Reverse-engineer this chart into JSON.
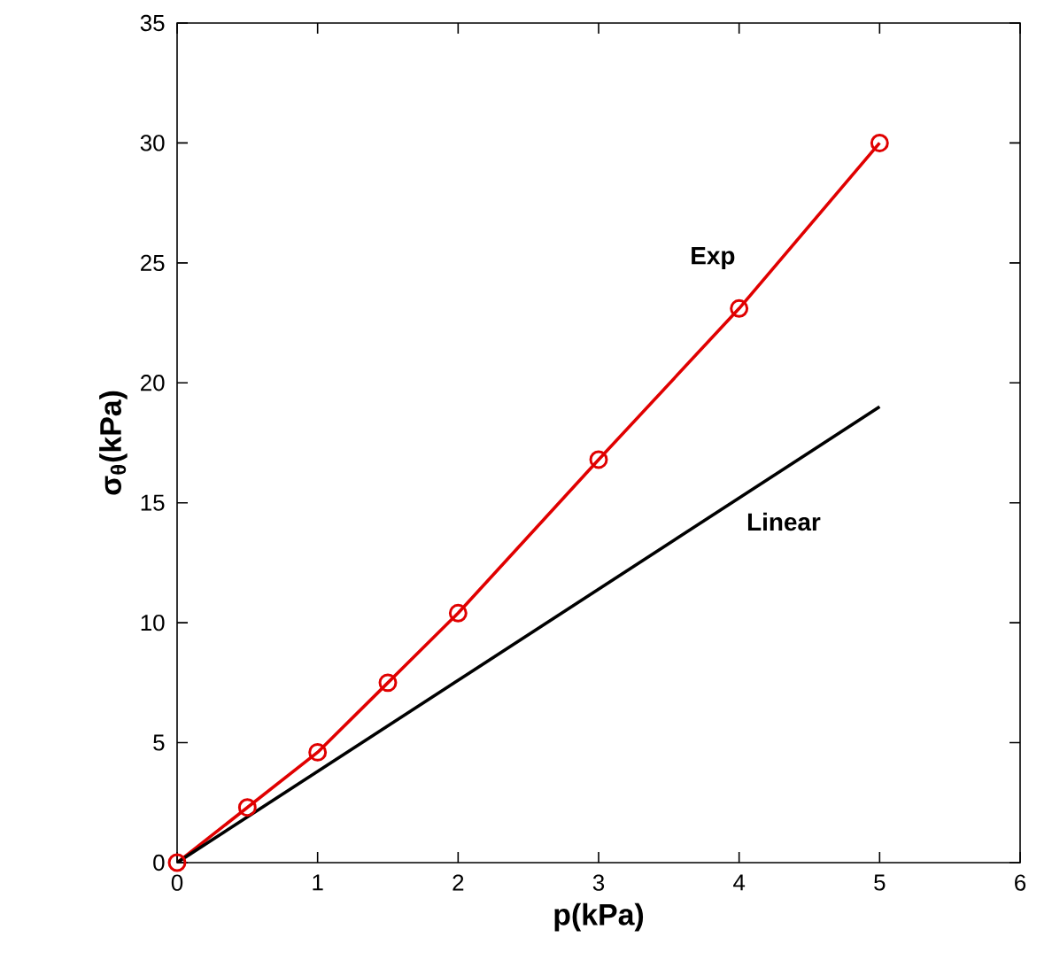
{
  "chart_data": {
    "type": "line",
    "xlabel": "p(kPa)",
    "ylabel": "σ$_{θ}$(kPa)",
    "xlim": [
      0,
      6
    ],
    "ylim": [
      0,
      35
    ],
    "xticks": [
      0,
      1,
      2,
      3,
      4,
      5,
      6
    ],
    "yticks": [
      0,
      5,
      10,
      15,
      20,
      25,
      30,
      35
    ],
    "grid": false,
    "series": [
      {
        "name": "Exp",
        "color": "#e00000",
        "marker": "circle",
        "x": [
          0,
          0.5,
          1,
          1.5,
          2,
          3,
          4,
          5
        ],
        "values": [
          0,
          2.3,
          4.6,
          7.5,
          10.4,
          16.8,
          23.1,
          30
        ]
      },
      {
        "name": "Linear",
        "color": "#000000",
        "marker": "none",
        "x": [
          0,
          5
        ],
        "values": [
          0,
          19
        ]
      }
    ]
  }
}
